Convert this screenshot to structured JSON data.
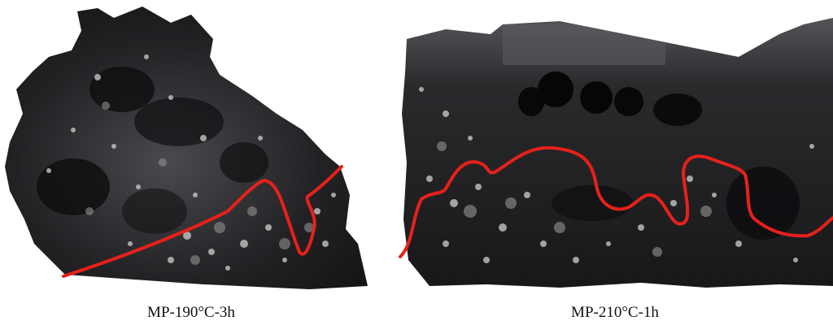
{
  "panels": [
    {
      "caption": "MP-190°C-3h",
      "boundary_color": "#e8201a"
    },
    {
      "caption": "MP-210°C-1h",
      "boundary_color": "#e8201a"
    }
  ],
  "palette": {
    "sample_dark": "#1b1b1d",
    "sample_mid": "#3a3a3e",
    "sample_light": "#bdbdbd"
  }
}
